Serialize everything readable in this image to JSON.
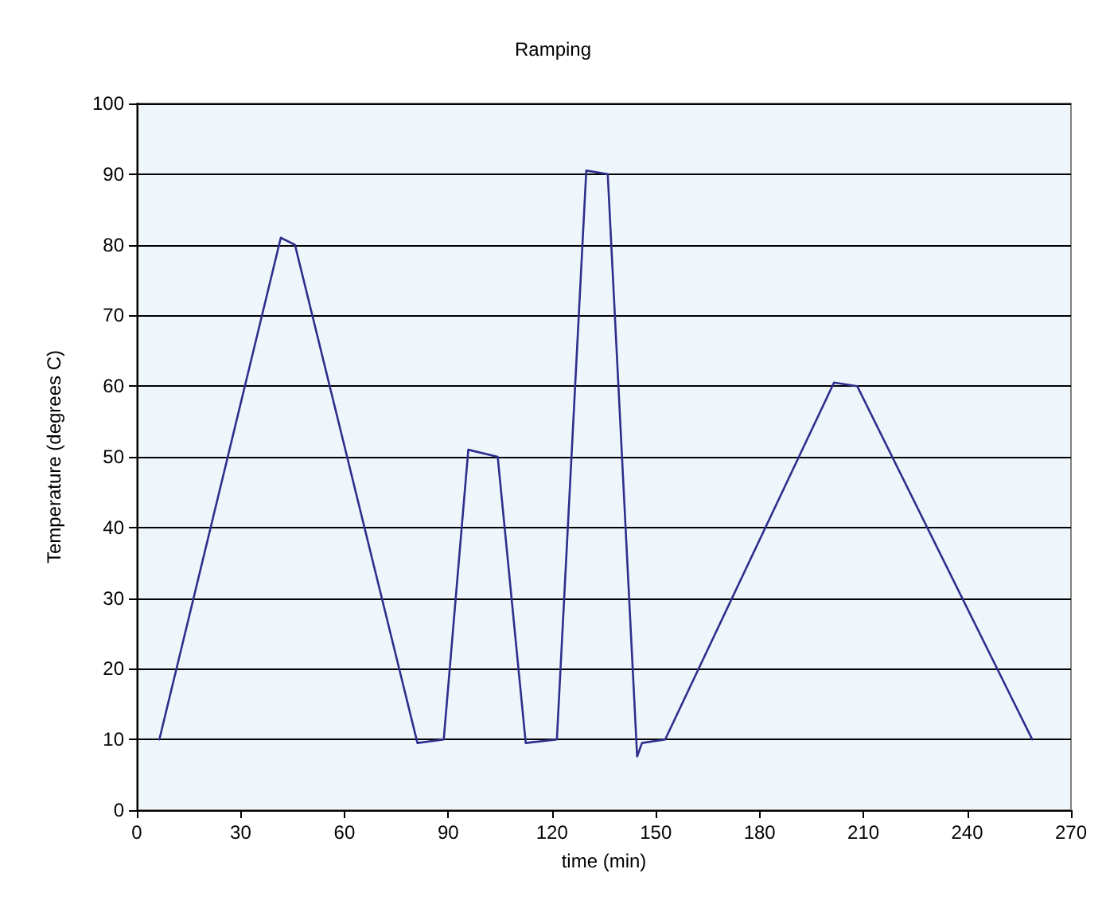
{
  "chart_data": {
    "type": "line",
    "title": "Ramping",
    "xlabel": "time (min)",
    "ylabel": "Temperature (degrees C)",
    "x": [
      6.5,
      41.6,
      45.7,
      81.1,
      88.7,
      95.8,
      104.3,
      112.4,
      121.4,
      129.9,
      136.1,
      144.6,
      146,
      152.7,
      201.5,
      208.2,
      258.8
    ],
    "series": [
      {
        "color": "#2e2e8c",
        "values": [
          10,
          81,
          80,
          9.5,
          10,
          51,
          50,
          9.5,
          10,
          90.5,
          90,
          7.6,
          9.5,
          10,
          60.5,
          60,
          10
        ]
      }
    ],
    "xlim": [
      0,
      270
    ],
    "xticks": [
      0,
      30,
      60,
      90,
      120,
      150,
      180,
      210,
      240,
      270
    ],
    "ylim": [
      0,
      100
    ],
    "yticks": [
      0,
      10,
      20,
      30,
      40,
      50,
      60,
      70,
      80,
      90,
      100
    ],
    "grid": "y",
    "marker": "none",
    "line_style": "solid"
  }
}
